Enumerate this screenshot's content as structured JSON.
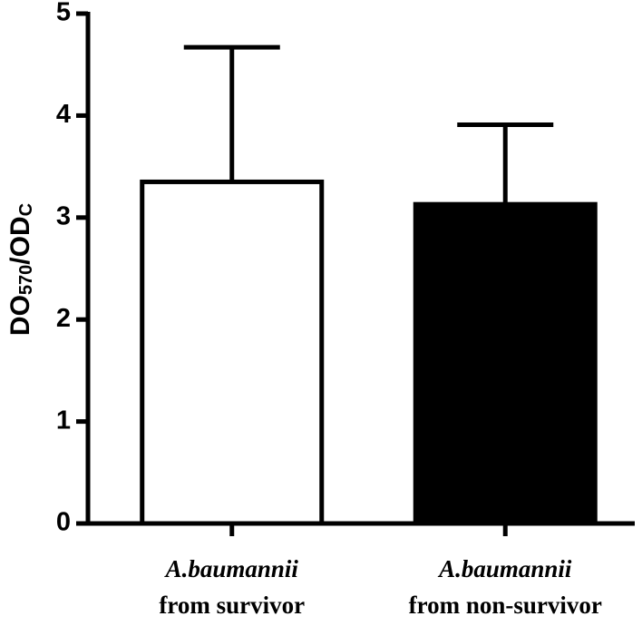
{
  "chart_data": {
    "type": "bar",
    "y_label": [
      "DO",
      "570",
      "/OD",
      "C"
    ],
    "categories": [
      [
        "A.baumannii",
        "from survivor"
      ],
      [
        "A.baumannii",
        "from non-survivor"
      ]
    ],
    "values": [
      3.35,
      3.13
    ],
    "errors": [
      1.32,
      0.78
    ],
    "colors": [
      "#ffffff",
      "#000000"
    ],
    "ylim": [
      0,
      5
    ],
    "yticks": [
      0,
      1,
      2,
      3,
      4,
      5
    ]
  }
}
